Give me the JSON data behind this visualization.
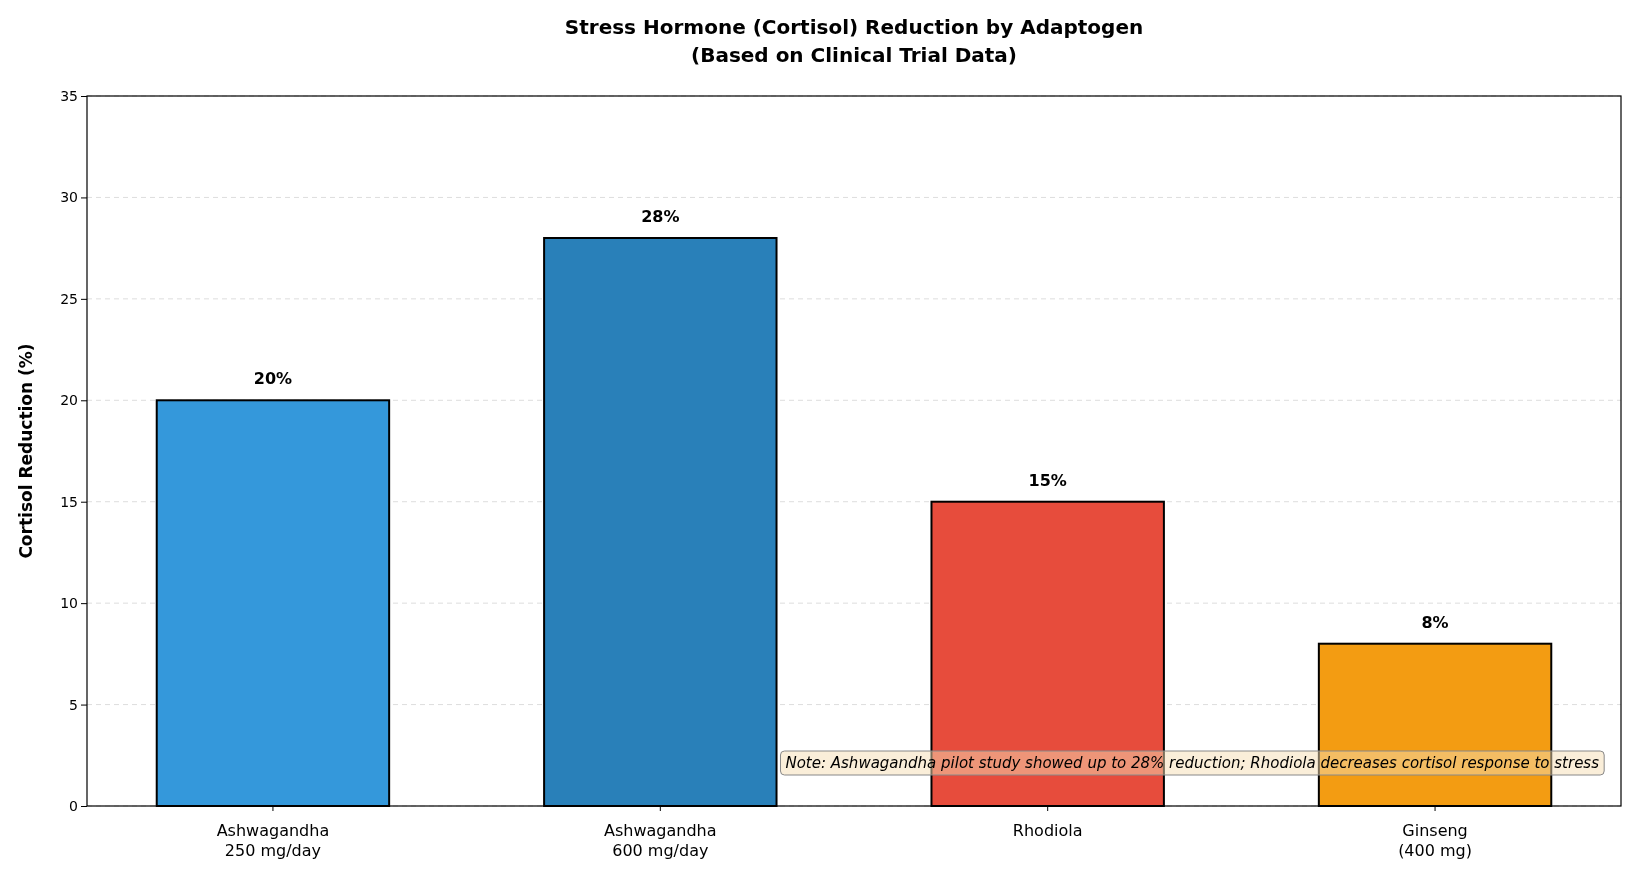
{
  "chart_data": {
    "type": "bar",
    "title": "Stress Hormone (Cortisol) Reduction by Adaptogen",
    "subtitle": "(Based on Clinical Trial Data)",
    "ylabel": "Cortisol Reduction (%)",
    "categories": [
      "Ashwagandha\n250 mg/day",
      "Ashwagandha\n600 mg/day",
      "Rhodiola",
      "Ginseng\n(400 mg)"
    ],
    "values": [
      20,
      28,
      15,
      8
    ],
    "colors": [
      "#3498db",
      "#2980b9",
      "#e74c3c",
      "#f39c12"
    ],
    "value_labels": [
      "20%",
      "28%",
      "15%",
      "8%"
    ],
    "ylim": [
      0,
      35
    ],
    "yticks": [
      0,
      5,
      10,
      15,
      20,
      25,
      30,
      35
    ],
    "grid": "y",
    "annotations": [
      "Note: Ashwagandha pilot study showed up to 28% reduction; Rhodiola decreases cortisol response to stress"
    ]
  }
}
